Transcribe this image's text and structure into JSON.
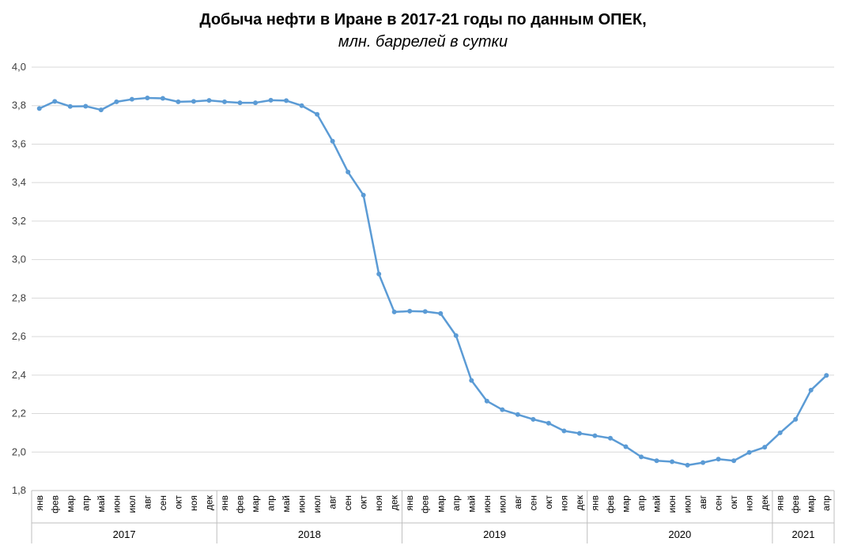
{
  "chart_data": {
    "type": "line",
    "title": "Добыча нефти в Иране в 2017-21 годы по данным ОПЕК,",
    "subtitle": "млн. баррелей в сутки",
    "xlabel": "",
    "ylabel": "",
    "ylim": [
      1.8,
      4.0
    ],
    "yticks": [
      "1,8",
      "2,0",
      "2,2",
      "2,4",
      "2,6",
      "2,8",
      "3,0",
      "3,2",
      "3,4",
      "3,6",
      "3,8",
      "4,0"
    ],
    "ytick_values": [
      1.8,
      2.0,
      2.2,
      2.4,
      2.6,
      2.8,
      3.0,
      3.2,
      3.4,
      3.6,
      3.8,
      4.0
    ],
    "grid": true,
    "legend": "none",
    "color": "#5b9bd5",
    "categories": [
      "янв",
      "фев",
      "мар",
      "апр",
      "май",
      "июн",
      "июл",
      "авг",
      "сен",
      "окт",
      "ноя",
      "дек",
      "янв",
      "фев",
      "мар",
      "апр",
      "май",
      "июн",
      "июл",
      "авг",
      "сен",
      "окт",
      "ноя",
      "дек",
      "янв",
      "фев",
      "мар",
      "апр",
      "май",
      "июн",
      "июл",
      "авг",
      "сен",
      "окт",
      "ноя",
      "дек",
      "янв",
      "фев",
      "мар",
      "апр",
      "май",
      "июн",
      "июл",
      "авг",
      "сен",
      "окт",
      "ноя",
      "дек",
      "янв",
      "фев",
      "мар",
      "апр"
    ],
    "groups": [
      {
        "label": "2017",
        "count": 12
      },
      {
        "label": "2018",
        "count": 12
      },
      {
        "label": "2019",
        "count": 12
      },
      {
        "label": "2020",
        "count": 12
      },
      {
        "label": "2021",
        "count": 4
      }
    ],
    "values": [
      3.785,
      3.822,
      3.796,
      3.797,
      3.778,
      3.82,
      3.833,
      3.84,
      3.838,
      3.82,
      3.822,
      3.827,
      3.82,
      3.815,
      3.815,
      3.828,
      3.826,
      3.8,
      3.755,
      3.615,
      3.455,
      3.335,
      2.925,
      2.728,
      2.732,
      2.73,
      2.72,
      2.605,
      2.372,
      2.265,
      2.22,
      2.195,
      2.17,
      2.15,
      2.11,
      2.097,
      2.085,
      2.072,
      2.028,
      1.975,
      1.955,
      1.95,
      1.932,
      1.945,
      1.963,
      1.955,
      1.998,
      2.025,
      2.1,
      2.17,
      2.322,
      2.398
    ]
  }
}
